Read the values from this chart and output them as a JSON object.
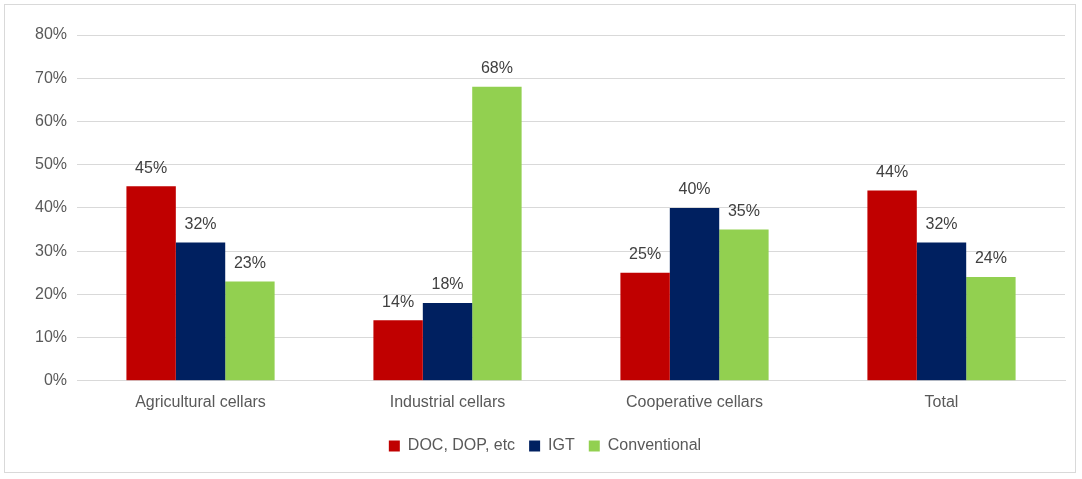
{
  "chart_data": {
    "type": "bar",
    "categories": [
      "Agricultural cellars",
      "Industrial cellars",
      "Cooperative cellars",
      "Total"
    ],
    "series": [
      {
        "name": "DOC, DOP, etc",
        "color": "#c00000",
        "values": [
          45,
          14,
          25,
          44
        ],
        "value_labels": [
          "45%",
          "14%",
          "25%",
          "44%"
        ]
      },
      {
        "name": "IGT",
        "color": "#002060",
        "values": [
          32,
          18,
          40,
          32
        ],
        "value_labels": [
          "32%",
          "18%",
          "40%",
          "32%"
        ]
      },
      {
        "name": "Conventional",
        "color": "#92d050",
        "values": [
          23,
          68,
          35,
          24
        ],
        "value_labels": [
          "23%",
          "68%",
          "35%",
          "24%"
        ]
      }
    ],
    "ylim": [
      0,
      80
    ],
    "yticks": [
      {
        "value": 0,
        "label": "0%"
      },
      {
        "value": 10,
        "label": "10%"
      },
      {
        "value": 20,
        "label": "20%"
      },
      {
        "value": 30,
        "label": "30%"
      },
      {
        "value": 40,
        "label": "40%"
      },
      {
        "value": 50,
        "label": "50%"
      },
      {
        "value": 60,
        "label": "60%"
      },
      {
        "value": 70,
        "label": "70%"
      },
      {
        "value": 80,
        "label": "80%"
      }
    ],
    "grid": "y",
    "legend": "bottom"
  }
}
